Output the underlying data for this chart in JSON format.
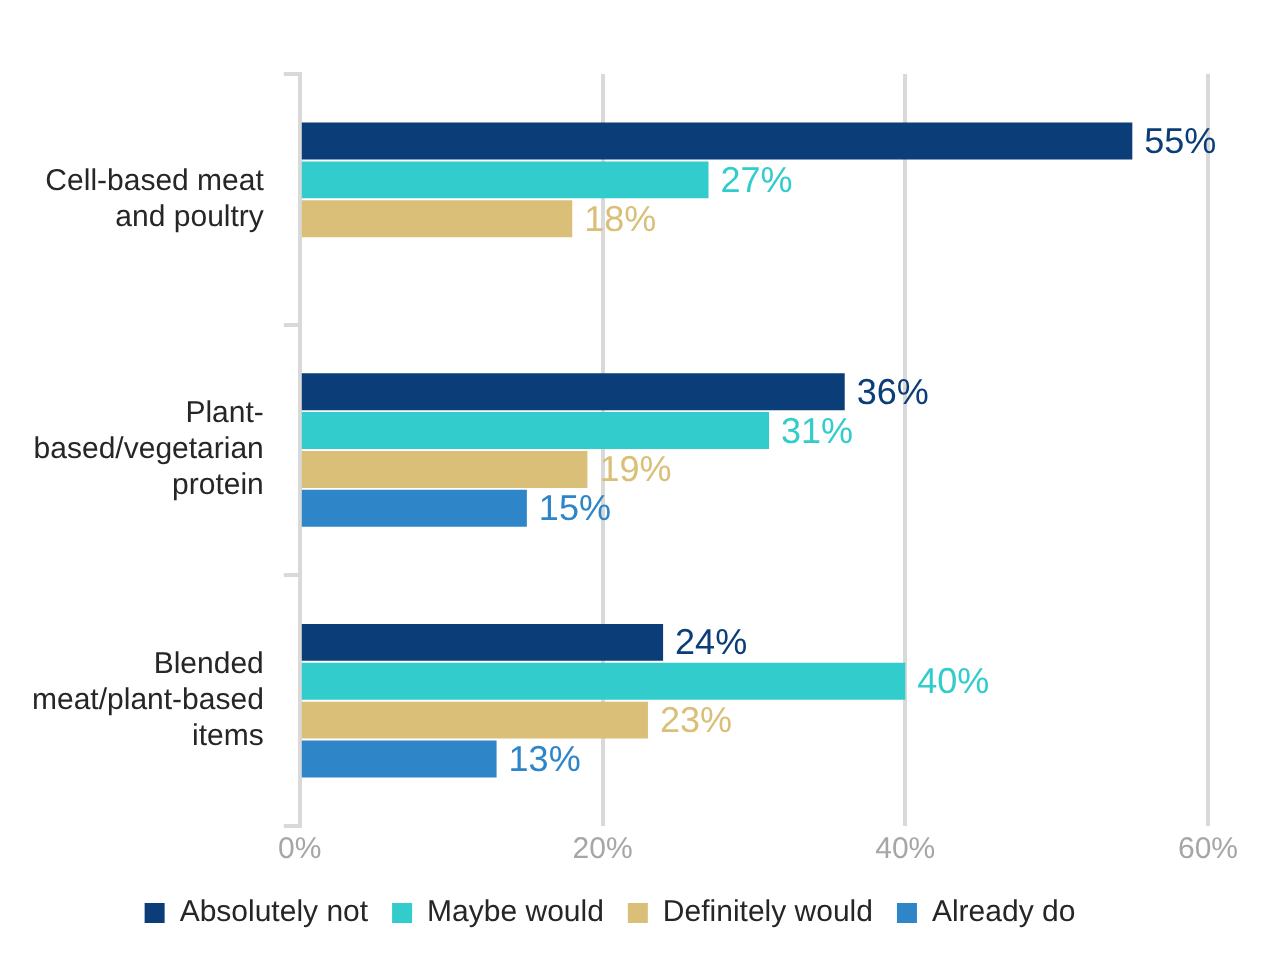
{
  "chart_data": {
    "type": "bar",
    "orientation": "horizontal",
    "categories": [
      "Cell-based meat and poultry",
      "Plant-based/vegetarian protein",
      "Blended meat/plant-based items"
    ],
    "series": [
      {
        "name": "Absolutely not",
        "color": "#0b3d79",
        "values": [
          55,
          36,
          24
        ],
        "value_labels": [
          "55%",
          "36%",
          "24%"
        ]
      },
      {
        "name": "Maybe would",
        "color": "#33cccc",
        "values": [
          27,
          31,
          40
        ],
        "value_labels": [
          "27%",
          "31%",
          "40%"
        ]
      },
      {
        "name": "Definitely would",
        "color": "#d9bf77",
        "values": [
          18,
          19,
          23
        ],
        "value_labels": [
          "18%",
          "19%",
          "23%"
        ]
      },
      {
        "name": "Already do",
        "color": "#2e86c8",
        "values": [
          null,
          15,
          13
        ],
        "value_labels": [
          null,
          "15%",
          "13%"
        ]
      }
    ],
    "xlim": [
      0,
      60
    ],
    "xticks": [
      {
        "value": 0,
        "label": "0%"
      },
      {
        "value": 20,
        "label": "20%"
      },
      {
        "value": 40,
        "label": "40%"
      },
      {
        "value": 60,
        "label": "60%"
      }
    ],
    "grid": "x",
    "legend": "bottom"
  }
}
